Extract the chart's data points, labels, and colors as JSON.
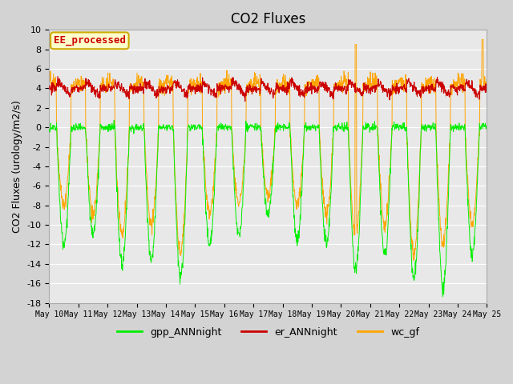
{
  "title": "CO2 Fluxes",
  "ylabel": "CO2 Fluxes (urology/m2/s)",
  "ylim": [
    -18,
    10
  ],
  "yticks": [
    -18,
    -16,
    -14,
    -12,
    -10,
    -8,
    -6,
    -4,
    -2,
    0,
    2,
    4,
    6,
    8,
    10
  ],
  "plot_bg_color": "#e8e8e8",
  "fig_bg_color": "#d3d3d3",
  "grid_color": "#ffffff",
  "line_colors": {
    "gpp": "#00ee00",
    "er": "#cc0000",
    "wc": "#ffa500"
  },
  "legend_labels": [
    "gpp_ANNnight",
    "er_ANNnight",
    "wc_gf"
  ],
  "annotation_text": "EE_processed",
  "annotation_color": "#cc0000",
  "annotation_bg": "#ffffcc",
  "annotation_edge": "#ccaa00",
  "n_days": 15,
  "start_day": 10,
  "points_per_day": 96,
  "title_fontsize": 12,
  "label_fontsize": 9,
  "tick_fontsize": 8,
  "legend_fontsize": 9
}
